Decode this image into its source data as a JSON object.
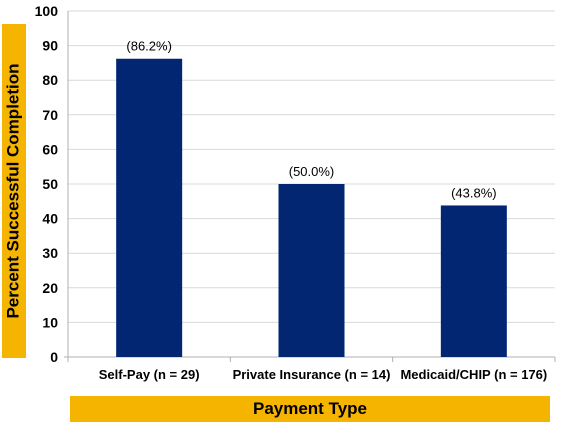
{
  "chart_data": {
    "type": "bar",
    "categories": [
      "Self-Pay (n = 29)",
      "Private Insurance (n = 14)",
      "Medicaid/CHIP (n = 176)"
    ],
    "values": [
      86.2,
      50.0,
      43.8
    ],
    "data_labels": [
      "(86.2%)",
      "(50.0%)",
      "(43.8%)"
    ],
    "xlabel": "Payment Type",
    "ylabel": "Percent Successful Completion",
    "ylim": [
      0,
      100
    ],
    "yticks": [
      0,
      10,
      20,
      30,
      40,
      50,
      60,
      70,
      80,
      90,
      100
    ],
    "grid": true,
    "bar_color": "#032672",
    "grid_color": "#d9d9d9",
    "label_band_color": "#f5b400"
  }
}
